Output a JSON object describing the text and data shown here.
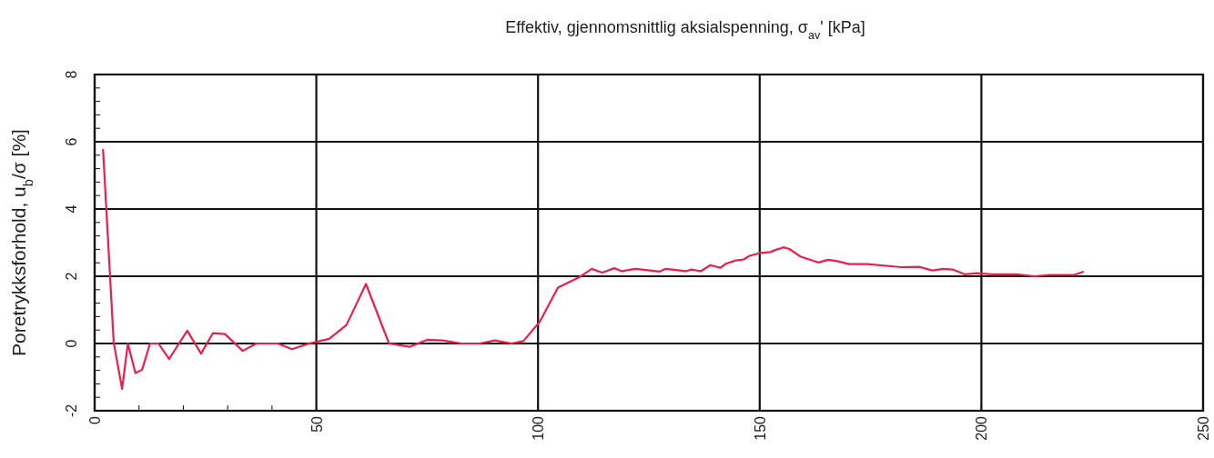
{
  "chart_data": {
    "type": "line",
    "xlabel": "Effektiv, gjennomsnittlig aksialspenning, σ$_{av}$'  [kPa]",
    "ylabel": "Poretrykksforhold, u$_{b}$/σ [%]",
    "xlim": [
      0,
      250
    ],
    "ylim": [
      -2,
      8
    ],
    "xticks": [
      0,
      {
        "value": 10,
        "label": null
      },
      {
        "value": 20,
        "label": null
      },
      {
        "value": 30,
        "label": null
      },
      {
        "value": 40,
        "label": null
      },
      50,
      100,
      150,
      200,
      250
    ],
    "yticks": [
      -2,
      {
        "value": -1.6,
        "label": null
      },
      {
        "value": -1.2,
        "label": null
      },
      {
        "value": -0.8,
        "label": null
      },
      {
        "value": -0.4,
        "label": null
      },
      0,
      {
        "value": 0.4,
        "label": null
      },
      {
        "value": 0.8,
        "label": null
      },
      {
        "value": 1.2,
        "label": null
      },
      {
        "value": 1.6,
        "label": null
      },
      2,
      {
        "value": 2.4,
        "label": null
      },
      {
        "value": 2.8,
        "label": null
      },
      {
        "value": 3.2,
        "label": null
      },
      {
        "value": 3.6,
        "label": null
      },
      4,
      {
        "value": 4.4,
        "label": null
      },
      {
        "value": 4.8,
        "label": null
      },
      {
        "value": 5.2,
        "label": null
      },
      {
        "value": 5.6,
        "label": null
      },
      6,
      {
        "value": 6.4,
        "label": null
      },
      {
        "value": 6.8,
        "label": null
      },
      {
        "value": 7.2,
        "label": null
      },
      {
        "value": 7.6,
        "label": null
      },
      8
    ],
    "grid": true,
    "line_style": "solid",
    "series": [
      {
        "color": "#e8204a",
        "x": [
          1.9,
          4.3,
          6.2,
          7.5,
          9.2,
          10.7,
          12.5,
          14.4,
          16.8,
          20.9,
          24,
          26.7,
          29.4,
          33.4,
          36.5,
          41.3,
          44.5,
          48.4,
          52.9,
          56.8,
          61.2,
          66.4,
          71,
          75,
          78.5,
          82.7,
          86.8,
          90.3,
          94,
          96.7,
          100.4,
          104.5,
          106.9,
          109.3,
          112.1,
          114.5,
          117.2,
          118.9,
          122,
          127.5,
          128.8,
          133.3,
          134.6,
          136.7,
          138.9,
          141.1,
          142.5,
          144.6,
          146.4,
          147.6,
          150,
          152.4,
          153.5,
          155.4,
          156.7,
          159.3,
          163.2,
          165.4,
          167.5,
          170.1,
          174.3,
          181.9,
          186,
          189,
          191.4,
          193.5,
          196.2,
          199,
          202.4,
          207.9,
          212,
          215.4,
          220.9,
          222.9
        ],
        "values": [
          5.76,
          0.03,
          -1.35,
          0,
          -0.88,
          -0.78,
          0,
          0,
          -0.46,
          0.38,
          -0.3,
          0.31,
          0.28,
          -0.22,
          0,
          0,
          -0.17,
          0,
          0.14,
          0.55,
          1.77,
          0,
          -0.1,
          0.11,
          0.09,
          0,
          0,
          0.09,
          0,
          0.07,
          0.65,
          1.66,
          1.82,
          1.97,
          2.22,
          2.11,
          2.24,
          2.15,
          2.22,
          2.14,
          2.22,
          2.15,
          2.2,
          2.15,
          2.33,
          2.25,
          2.38,
          2.47,
          2.5,
          2.6,
          2.69,
          2.72,
          2.78,
          2.86,
          2.81,
          2.58,
          2.41,
          2.49,
          2.45,
          2.36,
          2.36,
          2.27,
          2.28,
          2.17,
          2.22,
          2.2,
          2.06,
          2.09,
          2.06,
          2.06,
          2.0,
          2.04,
          2.04,
          2.13
        ]
      }
    ]
  }
}
